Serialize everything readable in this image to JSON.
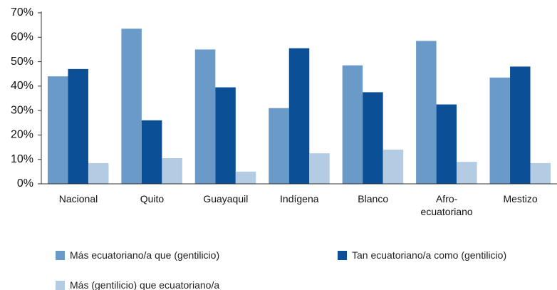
{
  "chart_data": {
    "type": "bar",
    "categories": [
      "Nacional",
      "Quito",
      "Guayaquil",
      "Indígena",
      "Blanco",
      "Afro-\necuatoriano",
      "Mestizo"
    ],
    "series": [
      {
        "name": "Más ecuatoriano/a que (gentilicio)",
        "color": "#6a9bc8",
        "values": [
          44,
          63.5,
          55,
          31,
          48.5,
          58.5,
          43.5
        ]
      },
      {
        "name": "Tan ecuatoriano/a como (gentilicio)",
        "color": "#0b4f96",
        "values": [
          47,
          26,
          39.5,
          55.5,
          37.5,
          32.5,
          48
        ]
      },
      {
        "name": "Más (gentilicio) que ecuatoriano/a",
        "color": "#b3cce3",
        "values": [
          8.5,
          10.5,
          5,
          12.5,
          14,
          9,
          8.5
        ]
      }
    ],
    "ylim": [
      0,
      70
    ],
    "yticks": [
      {
        "value": 0,
        "label": "0%"
      },
      {
        "value": 10,
        "label": "10%"
      },
      {
        "value": 20,
        "label": "20%"
      },
      {
        "value": 30,
        "label": "30%"
      },
      {
        "value": 40,
        "label": "40%"
      },
      {
        "value": 50,
        "label": "50%"
      },
      {
        "value": 60,
        "label": "60%"
      },
      {
        "value": 70,
        "label": "70%"
      }
    ],
    "grid": false
  }
}
